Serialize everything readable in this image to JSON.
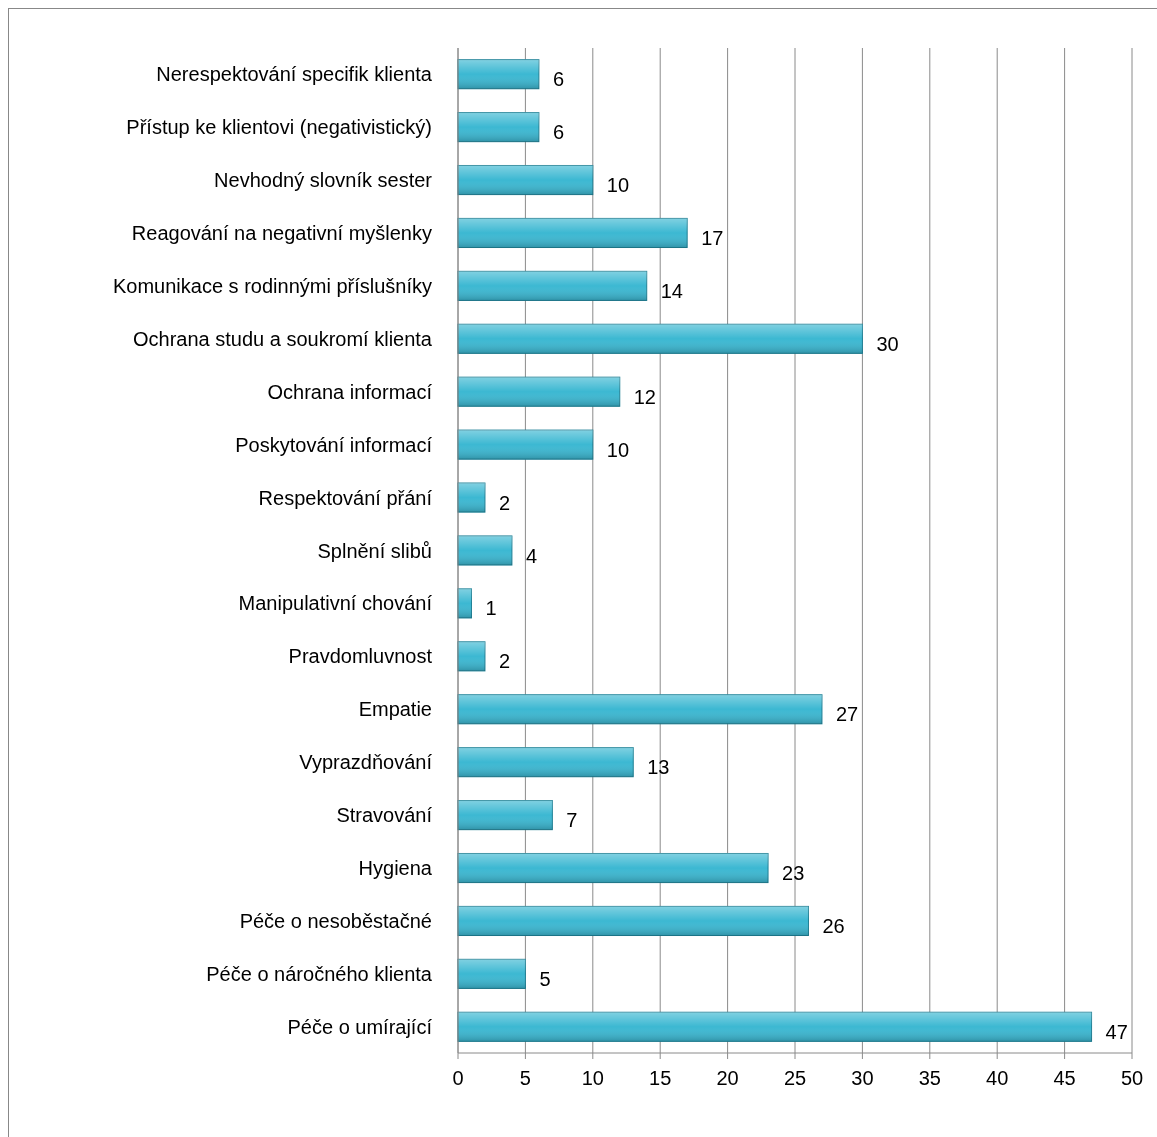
{
  "chart_data": {
    "type": "bar",
    "orientation": "horizontal",
    "categories": [
      "Nerespektování specifik klienta",
      "Přístup ke klientovi (negativistický)",
      "Nevhodný slovník sester",
      "Reagování na negativní myšlenky",
      "Komunikace s rodinnými příslušníky",
      "Ochrana studu a soukromí klienta",
      "Ochrana informací",
      "Poskytování informací",
      "Respektování přání",
      "Splnění slibů",
      "Manipulativní chování",
      "Pravdomluvnost",
      "Empatie",
      "Vyprazdňování",
      "Stravování",
      "Hygiena",
      "Péče o nesoběstačné",
      "Péče o náročného klienta",
      "Péče o umírající"
    ],
    "values": [
      6,
      6,
      10,
      17,
      14,
      30,
      12,
      10,
      2,
      4,
      1,
      2,
      27,
      13,
      7,
      23,
      26,
      5,
      47
    ],
    "color": "#3cb8d2",
    "xlim": [
      0,
      50
    ],
    "xticks": [
      0,
      5,
      10,
      15,
      20,
      25,
      30,
      35,
      40,
      45,
      50
    ],
    "grid": "x",
    "data_labels": true
  }
}
